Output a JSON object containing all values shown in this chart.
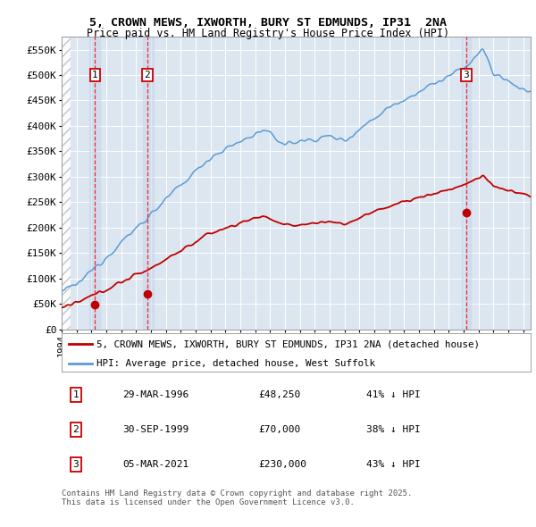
{
  "title_line1": "5, CROWN MEWS, IXWORTH, BURY ST EDMUNDS, IP31  2NA",
  "title_line2": "Price paid vs. HM Land Registry's House Price Index (HPI)",
  "background_color": "#ffffff",
  "plot_bg_color": "#dce6f0",
  "hpi_color": "#5b9bd5",
  "price_color": "#c00000",
  "sale_marker_color": "#c00000",
  "sale_vline_color": "#ff0000",
  "ylim": [
    0,
    575000
  ],
  "yticks": [
    0,
    50000,
    100000,
    150000,
    200000,
    250000,
    300000,
    350000,
    400000,
    450000,
    500000,
    550000
  ],
  "ytick_labels": [
    "£0",
    "£50K",
    "£100K",
    "£150K",
    "£200K",
    "£250K",
    "£300K",
    "£350K",
    "£400K",
    "£450K",
    "£500K",
    "£550K"
  ],
  "xlim_start": 1994.0,
  "xlim_end": 2025.5,
  "sale_times": [
    1996.24,
    1999.75,
    2021.18
  ],
  "sale_prices": [
    48250,
    70000,
    230000
  ],
  "sale_labels": [
    "1",
    "2",
    "3"
  ],
  "legend_entries": [
    "5, CROWN MEWS, IXWORTH, BURY ST EDMUNDS, IP31 2NA (detached house)",
    "HPI: Average price, detached house, West Suffolk"
  ],
  "footer_rows": [
    [
      "1",
      "29-MAR-1996",
      "£48,250",
      "41% ↓ HPI"
    ],
    [
      "2",
      "30-SEP-1999",
      "£70,000",
      "38% ↓ HPI"
    ],
    [
      "3",
      "05-MAR-2021",
      "£230,000",
      "43% ↓ HPI"
    ]
  ],
  "footer_text": "Contains HM Land Registry data © Crown copyright and database right 2025.\nThis data is licensed under the Open Government Licence v3.0."
}
